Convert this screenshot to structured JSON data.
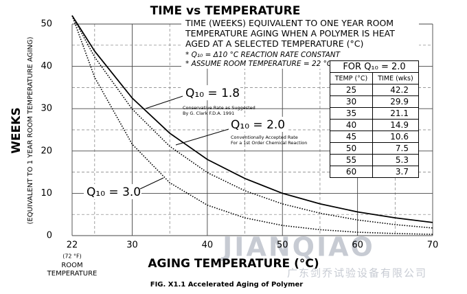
{
  "chart_data": {
    "type": "line",
    "title": "TIME vs TEMPERATURE",
    "ylabel": "WEEKS",
    "ylabel2": "(EQUIVALENT TO 1 YEAR ROOM TEMPERATURE AGING)",
    "xlabel": "AGING TEMPERATURE (°C)",
    "x_note": [
      "(72 °F)",
      "ROOM",
      "TEMPERATURE"
    ],
    "caption": "FIG. X1.1 Accelerated Aging of Polymer",
    "watermark": [
      "JIANQIAO",
      "广东剑乔试验设备有限公司"
    ],
    "box_text": [
      "TIME (WEEKS) EQUIVALENT TO ONE YEAR ROOM",
      "TEMPERATURE AGING WHEN A POLYMER IS HEAT",
      "AGED AT A SELECTED TEMPERATURE (°C)"
    ],
    "notes": [
      "* Q₁₀ = Δ10 °C REACTION RATE CONSTANT",
      "* ASSUME ROOM TEMPERATURE = 22 °C"
    ],
    "x": [
      22,
      25,
      30,
      35,
      40,
      45,
      50,
      55,
      60,
      65,
      70
    ],
    "series": [
      {
        "name": "Q₁₀ = 1.8",
        "color": "#000000",
        "style": "solid",
        "notes": [
          "Conservative Rate as Suggested",
          "By G. Clark F.D.A. 1991"
        ],
        "values": [
          52,
          43.6,
          32.5,
          24.2,
          18.0,
          13.5,
          10.0,
          7.5,
          5.6,
          4.2,
          3.1
        ]
      },
      {
        "name": "Q₁₀ = 2.0",
        "color": "#000000",
        "style": "dotted",
        "notes": [
          "Conventionally Accepted Rate",
          "For a 1st Order Chemical Reaction"
        ],
        "values": [
          52,
          42.2,
          29.9,
          21.1,
          14.9,
          10.6,
          7.5,
          5.3,
          3.7,
          2.6,
          1.8
        ]
      },
      {
        "name": "Q₁₀ = 3.0",
        "color": "#000000",
        "style": "dotted",
        "values": [
          52,
          37.4,
          21.6,
          12.5,
          7.2,
          4.2,
          2.4,
          1.4,
          0.8,
          0.5,
          0.3
        ]
      }
    ],
    "xlim": [
      22,
      70
    ],
    "xticks": [
      22,
      30,
      40,
      50,
      60,
      70
    ],
    "xminor": [
      25,
      35,
      45,
      55,
      65
    ],
    "ylim": [
      0,
      50
    ],
    "yticks": [
      0,
      10,
      20,
      30,
      40,
      50
    ],
    "yminor": [
      5,
      15,
      25,
      35,
      45
    ],
    "grid": true,
    "table": {
      "title": "FOR Q₁₀ = 2.0",
      "columns": [
        "TEMP (°C)",
        "TIME (wks)"
      ],
      "rows": [
        [
          25,
          42.2
        ],
        [
          30,
          29.9
        ],
        [
          35,
          21.1
        ],
        [
          40,
          14.9
        ],
        [
          45,
          10.6
        ],
        [
          50,
          7.5
        ],
        [
          55,
          5.3
        ],
        [
          60,
          3.7
        ]
      ]
    }
  }
}
